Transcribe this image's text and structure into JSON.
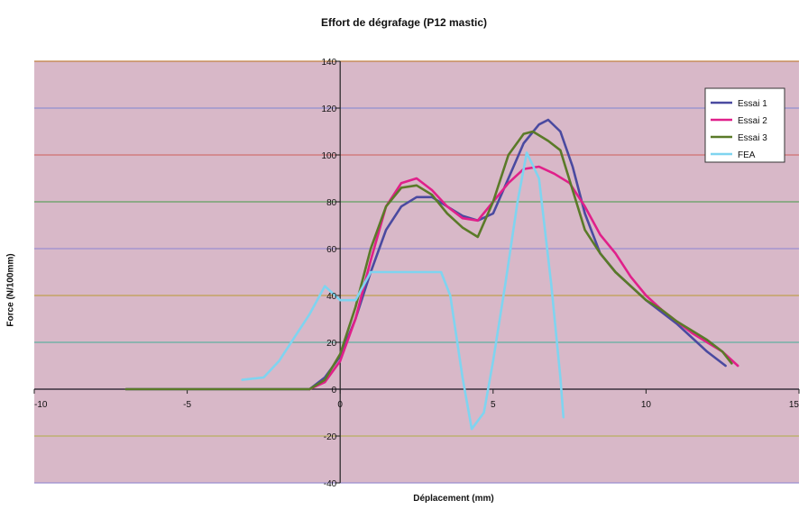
{
  "chart_data": {
    "type": "line",
    "title": "Effort de dégrafage (P12 mastic)",
    "xlabel": "Déplacement (mm)",
    "ylabel": "Force (N/100mm)",
    "xlim": [
      -10,
      15
    ],
    "ylim": [
      -40,
      140
    ],
    "x_ticks": [
      -10,
      -5,
      0,
      5,
      10,
      15
    ],
    "y_ticks": [
      -40,
      -20,
      0,
      20,
      40,
      60,
      80,
      100,
      120,
      140
    ],
    "x_tick_labels": [
      "-10",
      "-5",
      "0",
      "5",
      "10",
      "15"
    ],
    "y_tick_labels": [
      "-40",
      "-20",
      "0",
      "20",
      "40",
      "60",
      "80",
      "100",
      "120",
      "140"
    ],
    "grid": true,
    "legend_position": "top-right",
    "plot_background": "#d8b8c8",
    "gridline_colors": [
      "#9a8fd0",
      "#b8b060",
      "#a060c0",
      "#60b0a0",
      "#c0a050",
      "#9a8fd0",
      "#60a060",
      "#d07070",
      "#9090d0",
      "#c08040"
    ],
    "series": [
      {
        "name": "Essai 1",
        "color": "#4a4aa0",
        "x": [
          -7,
          -1,
          -0.5,
          0,
          0.5,
          1,
          1.5,
          2,
          2.5,
          3,
          3.5,
          4,
          4.5,
          5,
          5.5,
          6,
          6.5,
          6.8,
          7.2,
          7.6,
          8,
          8.5,
          9,
          9.5,
          10,
          10.5,
          11,
          11.5,
          12,
          12.6
        ],
        "y": [
          0,
          0,
          5,
          14,
          30,
          50,
          68,
          78,
          82,
          82,
          78,
          74,
          72,
          75,
          90,
          105,
          113,
          115,
          110,
          95,
          75,
          58,
          50,
          44,
          38,
          33,
          28,
          22,
          16,
          10
        ]
      },
      {
        "name": "Essai 2",
        "color": "#e0208a",
        "x": [
          -1,
          -0.5,
          0,
          0.5,
          1,
          1.5,
          2,
          2.5,
          3,
          3.5,
          4,
          4.5,
          5,
          5.5,
          6,
          6.5,
          7,
          7.5,
          8,
          8.5,
          9,
          9.5,
          10,
          10.5,
          11,
          11.5,
          12,
          12.5,
          13
        ],
        "y": [
          0,
          3,
          12,
          30,
          55,
          78,
          88,
          90,
          85,
          78,
          73,
          72,
          80,
          88,
          94,
          95,
          92,
          88,
          78,
          66,
          58,
          48,
          40,
          34,
          29,
          24,
          20,
          16,
          10
        ]
      },
      {
        "name": "Essai 3",
        "color": "#5a7a28",
        "x": [
          -7,
          -1,
          -0.5,
          0,
          0.5,
          1,
          1.5,
          2,
          2.5,
          3,
          3.5,
          4,
          4.5,
          5,
          5.5,
          6,
          6.3,
          6.8,
          7.2,
          7.6,
          8,
          8.5,
          9,
          9.5,
          10,
          10.5,
          11,
          11.5,
          12,
          12.5,
          12.8
        ],
        "y": [
          0,
          0,
          4,
          15,
          35,
          60,
          78,
          86,
          87,
          83,
          75,
          69,
          65,
          80,
          100,
          109,
          110,
          106,
          102,
          85,
          68,
          58,
          50,
          44,
          38,
          34,
          29,
          25,
          21,
          16,
          11
        ]
      },
      {
        "name": "FEA",
        "color": "#7fd4f0",
        "x": [
          -3.2,
          -2.5,
          -2,
          -1.5,
          -1,
          -0.5,
          0,
          0.5,
          1,
          1.5,
          2,
          2.5,
          3,
          3.3,
          3.6,
          4,
          4.3,
          4.7,
          5,
          5.4,
          5.8,
          6.1,
          6.5,
          6.9,
          7.2,
          7.3
        ],
        "y": [
          4,
          5,
          12,
          22,
          32,
          44,
          38,
          38,
          50,
          50,
          50,
          50,
          50,
          50,
          40,
          5,
          -17,
          -10,
          12,
          45,
          80,
          101,
          90,
          45,
          5,
          -12
        ]
      }
    ]
  }
}
